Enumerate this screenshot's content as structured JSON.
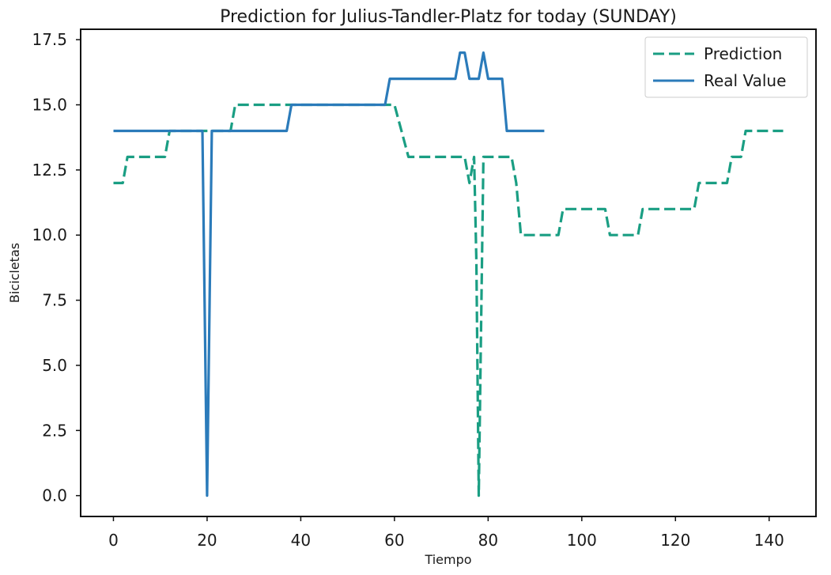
{
  "chart_data": {
    "type": "line",
    "title": "Prediction for Julius-Tandler-Platz for today (SUNDAY)",
    "xlabel": "Tiempo",
    "ylabel": "Bicicletas",
    "xlim": [
      -7,
      150
    ],
    "ylim": [
      -0.8,
      17.9
    ],
    "x_ticks": [
      0,
      20,
      40,
      60,
      80,
      100,
      120,
      140
    ],
    "y_ticks": [
      0.0,
      2.5,
      5.0,
      7.5,
      10.0,
      12.5,
      15.0,
      17.5
    ],
    "x_tick_labels": [
      "0",
      "20",
      "40",
      "60",
      "80",
      "100",
      "120",
      "140"
    ],
    "y_tick_labels": [
      "0.0",
      "2.5",
      "5.0",
      "7.5",
      "10.0",
      "12.5",
      "15.0",
      "17.5"
    ],
    "grid": false,
    "legend_position": "top-right",
    "series": [
      {
        "name": "Prediction",
        "color": "#1a9e83",
        "style": "dashed",
        "points": [
          [
            0,
            12
          ],
          [
            2,
            12
          ],
          [
            3,
            13
          ],
          [
            11,
            13
          ],
          [
            12,
            14
          ],
          [
            25,
            14
          ],
          [
            26,
            15
          ],
          [
            60,
            15
          ],
          [
            63,
            13
          ],
          [
            75,
            13
          ],
          [
            76,
            12
          ],
          [
            77,
            13
          ],
          [
            77.5,
            9
          ],
          [
            78,
            0
          ],
          [
            79,
            13
          ],
          [
            85,
            13
          ],
          [
            86,
            12
          ],
          [
            87,
            10
          ],
          [
            95,
            10
          ],
          [
            96,
            11
          ],
          [
            105,
            11
          ],
          [
            106,
            10
          ],
          [
            112,
            10
          ],
          [
            113,
            11
          ],
          [
            124,
            11
          ],
          [
            125,
            12
          ],
          [
            131,
            12
          ],
          [
            132,
            13
          ],
          [
            134,
            13
          ],
          [
            135,
            14
          ],
          [
            143,
            14
          ]
        ]
      },
      {
        "name": "Real Value",
        "color": "#2b7bba",
        "style": "solid",
        "points": [
          [
            0,
            14
          ],
          [
            19,
            14
          ],
          [
            20,
            0
          ],
          [
            21,
            14
          ],
          [
            37,
            14
          ],
          [
            38,
            15
          ],
          [
            58,
            15
          ],
          [
            59,
            16
          ],
          [
            73,
            16
          ],
          [
            74,
            17
          ],
          [
            75,
            17
          ],
          [
            76,
            16
          ],
          [
            78,
            16
          ],
          [
            79,
            17
          ],
          [
            80,
            16
          ],
          [
            83,
            16
          ],
          [
            84,
            14
          ],
          [
            92,
            14
          ]
        ]
      }
    ]
  }
}
